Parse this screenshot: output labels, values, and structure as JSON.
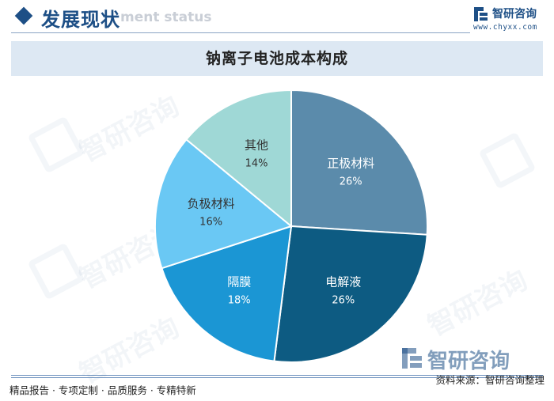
{
  "header": {
    "title": "发展现状",
    "subtitle": "ment status",
    "brand_name": "智研咨询",
    "brand_url": "www.chyxx.com"
  },
  "watermark_text": "智研咨询",
  "chart_data": {
    "type": "pie",
    "title": "钠离子电池成本构成",
    "slices": [
      {
        "label": "正极材料",
        "value": 26,
        "value_label": "26%",
        "color": "#5b8bab"
      },
      {
        "label": "电解液",
        "value": 26,
        "value_label": "26%",
        "color": "#0d5b82"
      },
      {
        "label": "隔膜",
        "value": 18,
        "value_label": "18%",
        "color": "#1b96d4"
      },
      {
        "label": "负极材料",
        "value": 16,
        "value_label": "16%",
        "color": "#6ac8f4"
      },
      {
        "label": "其他",
        "value": 14,
        "value_label": "14%",
        "color": "#9fd8d6"
      }
    ],
    "start_angle_deg": 0,
    "direction": "clockwise",
    "label_color_dark": "#ffffff",
    "label_color_light": "#333333"
  },
  "footer": {
    "left": "精品报告 · 专项定制 · 品质服务 · 专精特新",
    "source": "资料来源：智研咨询整理",
    "logo_text": "智研咨询"
  }
}
